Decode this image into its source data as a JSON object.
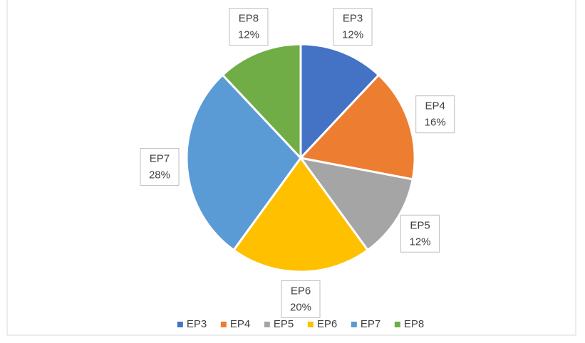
{
  "chart_data": {
    "type": "pie",
    "categories": [
      "EP3",
      "EP4",
      "EP5",
      "EP6",
      "EP7",
      "EP8"
    ],
    "values": [
      12,
      16,
      12,
      20,
      28,
      12
    ],
    "value_labels": [
      "12%",
      "16%",
      "12%",
      "20%",
      "28%",
      "12%"
    ],
    "colors": [
      "#4472c4",
      "#ed7d31",
      "#a5a5a5",
      "#ffc000",
      "#5b9bd5",
      "#70ad47"
    ],
    "legend": "bottom"
  }
}
